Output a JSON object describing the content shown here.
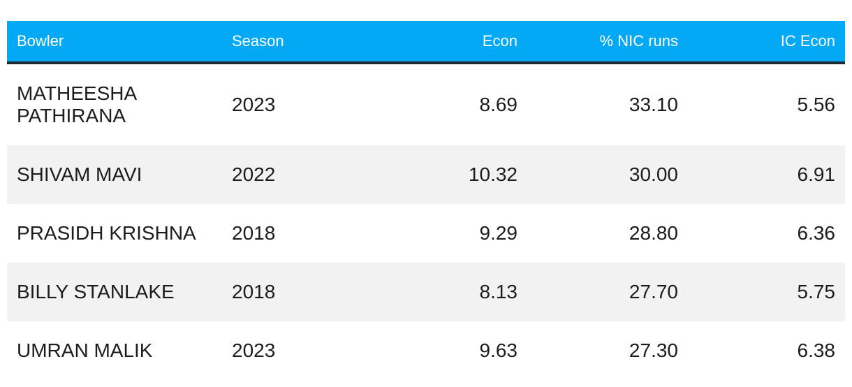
{
  "table": {
    "headers": {
      "bowler": "Bowler",
      "season": "Season",
      "econ": "Econ",
      "nic": "% NIC runs",
      "ic": "IC Econ"
    },
    "rows": [
      {
        "bowler_line1": "MATHEESHA",
        "bowler_line2": "PATHIRANA",
        "season": "2023",
        "econ": "8.69",
        "nic": "33.10",
        "ic": "5.56"
      },
      {
        "bowler": "SHIVAM MAVI",
        "season": "2022",
        "econ": "10.32",
        "nic": "30.00",
        "ic": "6.91"
      },
      {
        "bowler": "PRASIDH KRISHNA",
        "season": "2018",
        "econ": "9.29",
        "nic": "28.80",
        "ic": "6.36"
      },
      {
        "bowler": "BILLY STANLAKE",
        "season": "2018",
        "econ": "8.13",
        "nic": "27.70",
        "ic": "5.75"
      },
      {
        "bowler": "UMRAN MALIK",
        "season": "2023",
        "econ": "9.63",
        "nic": "27.30",
        "ic": "6.38"
      }
    ]
  }
}
